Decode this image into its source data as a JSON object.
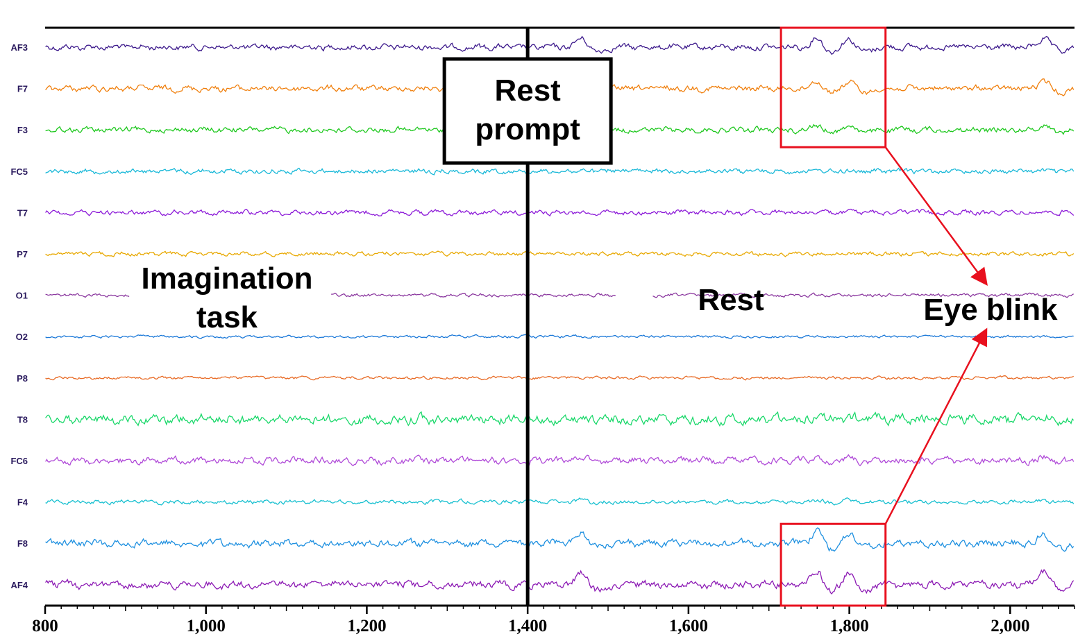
{
  "chart_data": {
    "type": "line",
    "xlim": [
      800,
      2080
    ],
    "x_ticks": [
      800,
      1000,
      1200,
      1400,
      1600,
      1800,
      2000
    ],
    "x_tick_labels": [
      "800",
      "1,000",
      "1,200",
      "1,400",
      "1,600",
      "1,800",
      "2,000"
    ],
    "grid": false,
    "series": [
      {
        "name": "AF3",
        "color": "#3d1a8c",
        "amp": 3.2,
        "blink": 1.0
      },
      {
        "name": "F7",
        "color": "#f07f0c",
        "amp": 3.2,
        "blink": 0.8
      },
      {
        "name": "F3",
        "color": "#1ec81e",
        "amp": 3.0,
        "blink": 0.5
      },
      {
        "name": "FC5",
        "color": "#18b8d8",
        "amp": 2.6,
        "blink": 0.05
      },
      {
        "name": "T7",
        "color": "#8c1ad8",
        "amp": 2.6,
        "blink": 0.05
      },
      {
        "name": "P7",
        "color": "#e8a800",
        "amp": 2.2,
        "blink": 0.0
      },
      {
        "name": "O1",
        "color": "#8c3aa0",
        "amp": 1.8,
        "blink": 0.0
      },
      {
        "name": "O2",
        "color": "#1a78d8",
        "amp": 1.4,
        "blink": 0.0
      },
      {
        "name": "P8",
        "color": "#e86a24",
        "amp": 1.6,
        "blink": 0.0
      },
      {
        "name": "T8",
        "color": "#1ad86a",
        "amp": 5.2,
        "blink": 0.15
      },
      {
        "name": "FC6",
        "color": "#b04ad8",
        "amp": 3.6,
        "blink": 0.4
      },
      {
        "name": "F4",
        "color": "#18c0d0",
        "amp": 2.2,
        "blink": 0.15
      },
      {
        "name": "F8",
        "color": "#1e90e0",
        "amp": 4.0,
        "blink": 1.1
      },
      {
        "name": "AF4",
        "color": "#8c1ab4",
        "amp": 4.2,
        "blink": 1.5
      }
    ],
    "events": [
      {
        "x": 1400,
        "label": "Rest prompt"
      }
    ],
    "annotations": [
      {
        "label": "Imagination task"
      },
      {
        "label": "Rest"
      },
      {
        "label": "Eye blink"
      }
    ],
    "highlight_boxes": [
      {
        "x_range": [
          1715,
          1845
        ],
        "channels": [
          "AF3",
          "F7",
          "F3"
        ]
      },
      {
        "x_range": [
          1715,
          1845
        ],
        "channels": [
          "F8",
          "AF4"
        ]
      }
    ],
    "blink_peaks_x": [
      1468,
      1760,
      1800,
      2043
    ]
  }
}
